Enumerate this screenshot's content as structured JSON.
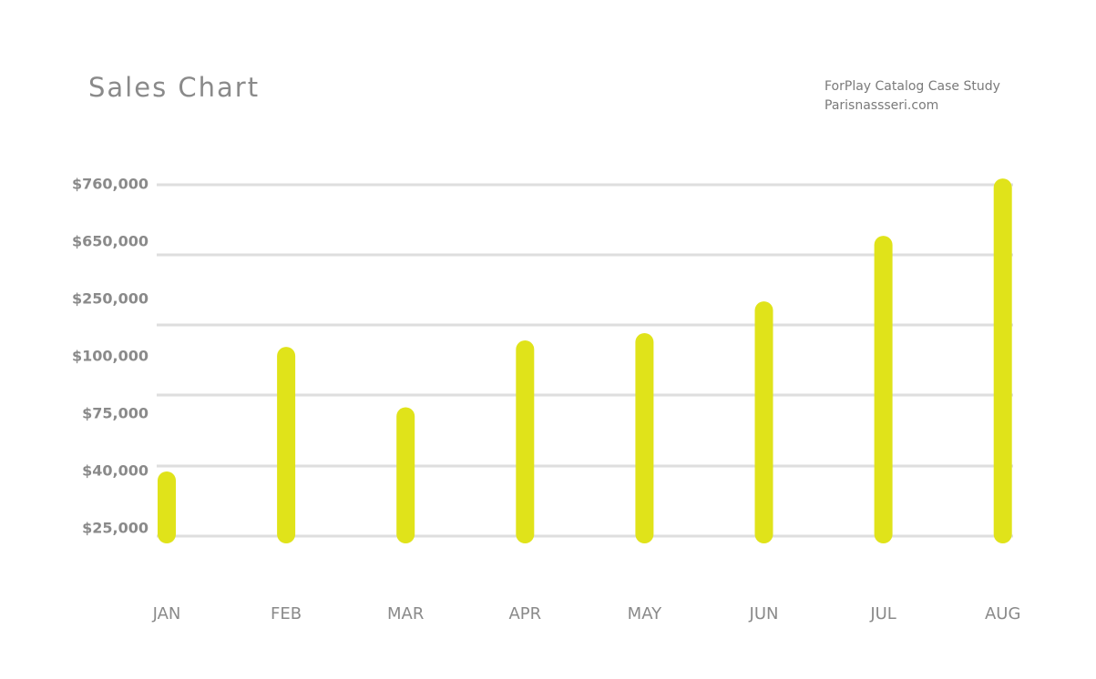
{
  "chart_data": {
    "type": "bar",
    "title": "Sales Chart",
    "subtitle": [
      "ForPlay Catalog Case Study",
      "Parisnassseri.com"
    ],
    "categories": [
      "JAN",
      "FEB",
      "MAR",
      "APR",
      "MAY",
      "JUN",
      "JUL",
      "AUG"
    ],
    "values": [
      40000,
      126000,
      78000,
      143000,
      162000,
      245000,
      662000,
      772000
    ],
    "color": "#e0e31a",
    "ylim": [
      25000,
      760000
    ],
    "yticks": [
      {
        "value": 25000,
        "label": "$25,000"
      },
      {
        "value": 40000,
        "label": "$40,000"
      },
      {
        "value": 75000,
        "label": "$75,000"
      },
      {
        "value": 100000,
        "label": "$100,000"
      },
      {
        "value": 250000,
        "label": "$250,000"
      },
      {
        "value": 650000,
        "label": "$650,000"
      },
      {
        "value": 760000,
        "label": "$760,000"
      }
    ]
  }
}
